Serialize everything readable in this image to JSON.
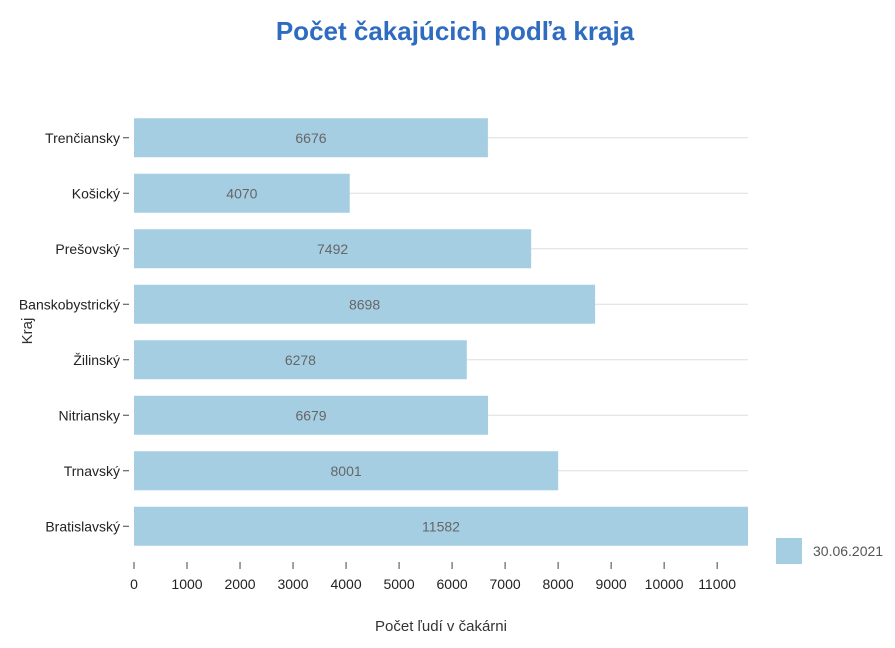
{
  "chart_data": {
    "type": "bar",
    "orientation": "horizontal",
    "title": "Počet čakajúcich podľa kraja",
    "xlabel": "Počet ľudí v čakárni",
    "ylabel": "Kraj",
    "categories": [
      "Trenčiansky",
      "Košický",
      "Prešovský",
      "Banskobystrický",
      "Žilinský",
      "Nitriansky",
      "Trnavský",
      "Bratislavský"
    ],
    "series": [
      {
        "name": "30.06.2021",
        "values": [
          6676,
          4070,
          7492,
          8698,
          6278,
          6679,
          8001,
          11582
        ],
        "color": "#a6cee3"
      }
    ],
    "xlim": [
      0,
      11582
    ],
    "xticks": [
      0,
      1000,
      2000,
      3000,
      4000,
      5000,
      6000,
      7000,
      8000,
      9000,
      10000,
      11000
    ],
    "grid": "horizontal",
    "legend": "bottom-right",
    "title_color": "#2e6cc0"
  }
}
